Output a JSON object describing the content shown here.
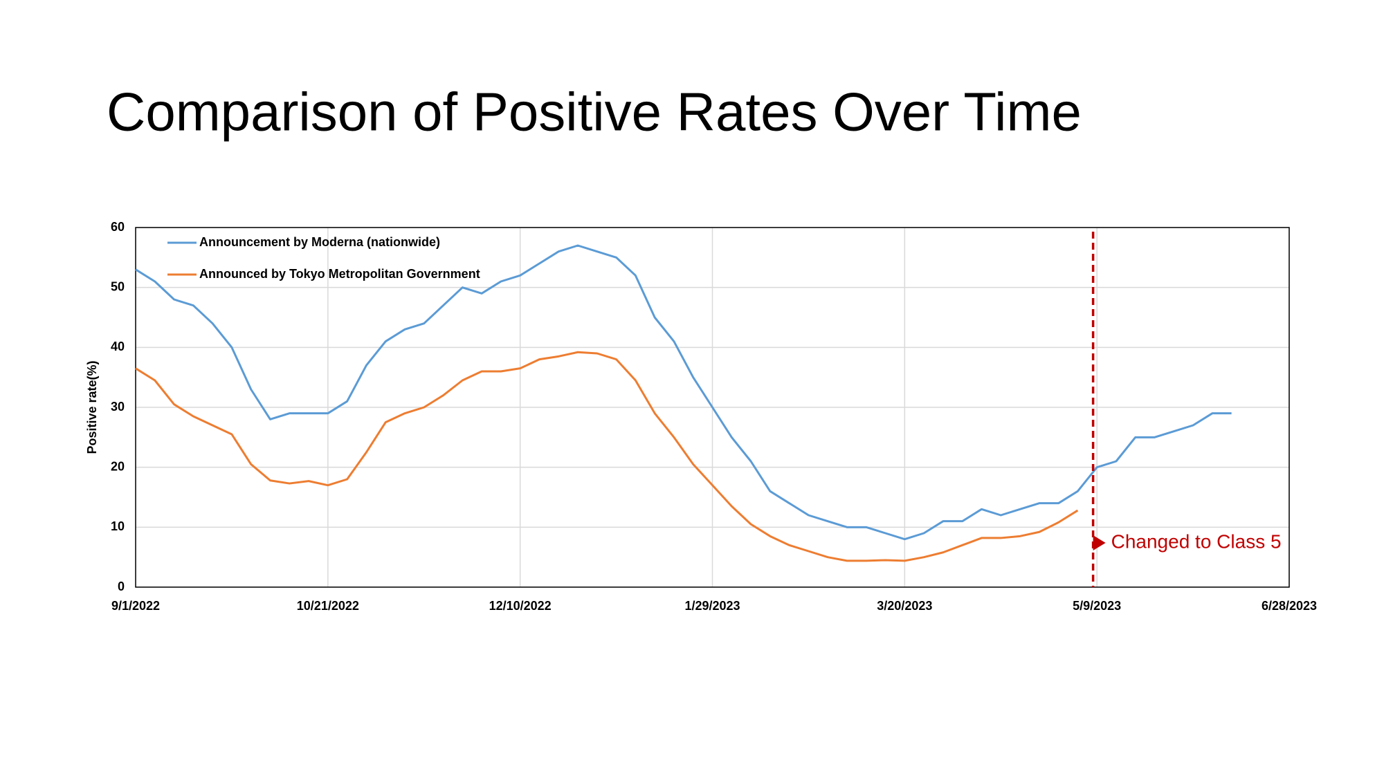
{
  "chart_data": {
    "type": "line",
    "title": "Comparison of Positive Rates Over Time",
    "y_label": "Positive rate(%)",
    "x": [
      "9/1/2022",
      "9/6/2022",
      "9/11/2022",
      "9/16/2022",
      "9/21/2022",
      "9/26/2022",
      "10/1/2022",
      "10/6/2022",
      "10/11/2022",
      "10/16/2022",
      "10/21/2022",
      "10/26/2022",
      "10/31/2022",
      "11/5/2022",
      "11/10/2022",
      "11/15/2022",
      "11/20/2022",
      "11/25/2022",
      "11/30/2022",
      "12/5/2022",
      "12/10/2022",
      "12/15/2022",
      "12/20/2022",
      "12/25/2022",
      "12/30/2022",
      "1/4/2023",
      "1/9/2023",
      "1/14/2023",
      "1/19/2023",
      "1/24/2023",
      "1/29/2023",
      "2/3/2023",
      "2/8/2023",
      "2/13/2023",
      "2/18/2023",
      "2/23/2023",
      "2/28/2023",
      "3/5/2023",
      "3/10/2023",
      "3/15/2023",
      "3/20/2023",
      "3/25/2023",
      "3/30/2023",
      "4/4/2023",
      "4/9/2023",
      "4/14/2023",
      "4/19/2023",
      "4/24/2023",
      "4/29/2023",
      "5/4/2023",
      "5/9/2023",
      "5/14/2023",
      "5/19/2023",
      "5/24/2023",
      "5/29/2023",
      "6/3/2023",
      "6/8/2023",
      "6/13/2023"
    ],
    "series": [
      {
        "name": "Announcement by Moderna (nationwide)",
        "color": "#5b9bd5",
        "values": [
          53,
          51,
          48,
          47,
          44,
          40,
          33,
          28,
          29,
          29,
          29,
          31,
          37,
          41,
          43,
          44,
          47,
          50,
          49,
          51,
          52,
          54,
          56,
          57,
          56,
          55,
          52,
          45,
          41,
          35,
          30,
          25,
          21,
          16,
          14,
          12,
          11,
          10,
          10,
          9,
          8,
          9,
          11,
          11,
          13,
          12,
          13,
          14,
          14,
          16,
          20,
          21,
          25,
          25,
          26,
          27,
          29,
          29
        ]
      },
      {
        "name": "Announced by Tokyo Metropolitan Government",
        "color": "#ed7d31",
        "values": [
          36.5,
          34.5,
          30.5,
          28.5,
          27,
          25.5,
          20.5,
          17.8,
          17.3,
          17.7,
          17,
          18,
          22.5,
          27.5,
          29,
          30,
          32,
          34.5,
          36,
          36,
          36.5,
          38,
          38.5,
          39.2,
          39,
          38,
          34.5,
          29,
          25,
          20.5,
          17,
          13.5,
          10.5,
          8.5,
          7,
          6,
          5,
          4.4,
          4.4,
          4.5,
          4.4,
          5,
          5.8,
          7,
          8.2,
          8.2,
          8.5,
          9.2,
          10.8,
          12.8,
          null,
          null,
          null,
          null,
          null,
          null,
          null,
          null
        ]
      }
    ],
    "xlim": [
      "9/1/2022",
      "6/28/2023"
    ],
    "xticks": [
      "9/1/2022",
      "10/21/2022",
      "12/10/2022",
      "1/29/2023",
      "3/20/2023",
      "5/9/2023",
      "6/28/2023"
    ],
    "ylim": [
      0,
      60
    ],
    "yticks": [
      0,
      10,
      20,
      30,
      40,
      50,
      60
    ],
    "grid": true,
    "legend": "top-left",
    "annotations": [
      {
        "x": "5/8/2023",
        "text": "Changed to Class 5",
        "color": "#c00000"
      }
    ]
  }
}
